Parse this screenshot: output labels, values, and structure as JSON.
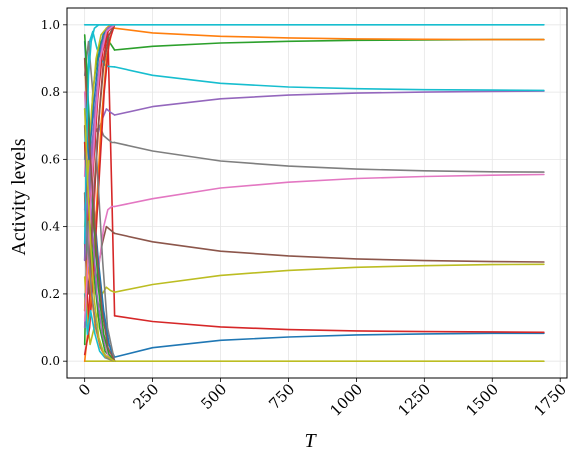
{
  "chart_data": {
    "type": "line",
    "title": "",
    "xlabel": "T",
    "ylabel": "Activity levels",
    "xlim": [
      -65,
      1775
    ],
    "ylim": [
      -0.05,
      1.05
    ],
    "xticks": [
      0,
      250,
      500,
      750,
      1000,
      1250,
      1500,
      1750
    ],
    "xtick_labels": [
      "0",
      "250",
      "500",
      "750",
      "1000",
      "1250",
      "1500",
      "1750"
    ],
    "yticks": [
      0.0,
      0.2,
      0.4,
      0.6,
      0.8,
      1.0
    ],
    "ytick_labels": [
      "0.0",
      "0.2",
      "0.4",
      "0.6",
      "0.8",
      "1.0"
    ],
    "grid": true,
    "legend": "none",
    "series": [
      {
        "color": "#1f77b4",
        "x": [
          110,
          250,
          500,
          750,
          1000,
          1250,
          1500,
          1690
        ],
        "y": [
          0.012,
          0.04,
          0.062,
          0.072,
          0.078,
          0.081,
          0.083,
          0.083
        ]
      },
      {
        "color": "#d62728",
        "x": [
          110,
          250,
          500,
          750,
          1000,
          1250,
          1500,
          1690
        ],
        "y": [
          0.135,
          0.118,
          0.102,
          0.094,
          0.09,
          0.088,
          0.087,
          0.086
        ]
      },
      {
        "color": "#bcbd22",
        "x": [
          110,
          250,
          500,
          750,
          1000,
          1250,
          1500,
          1690
        ],
        "y": [
          0.205,
          0.228,
          0.255,
          0.27,
          0.279,
          0.284,
          0.287,
          0.288
        ]
      },
      {
        "color": "#8c564b",
        "x": [
          110,
          250,
          500,
          750,
          1000,
          1250,
          1500,
          1690
        ],
        "y": [
          0.38,
          0.355,
          0.327,
          0.313,
          0.304,
          0.299,
          0.296,
          0.295
        ]
      },
      {
        "color": "#e377c2",
        "x": [
          110,
          250,
          500,
          750,
          1000,
          1250,
          1500,
          1690
        ],
        "y": [
          0.46,
          0.483,
          0.515,
          0.532,
          0.543,
          0.549,
          0.553,
          0.555
        ]
      },
      {
        "color": "#7f7f7f",
        "x": [
          110,
          250,
          500,
          750,
          1000,
          1250,
          1500,
          1690
        ],
        "y": [
          0.65,
          0.625,
          0.595,
          0.58,
          0.571,
          0.566,
          0.563,
          0.562
        ]
      },
      {
        "color": "#9467bd",
        "x": [
          110,
          250,
          500,
          750,
          1000,
          1250,
          1500,
          1690
        ],
        "y": [
          0.732,
          0.757,
          0.78,
          0.791,
          0.797,
          0.8,
          0.802,
          0.803
        ]
      },
      {
        "color": "#17becf",
        "x": [
          110,
          250,
          500,
          750,
          1000,
          1250,
          1500,
          1690
        ],
        "y": [
          0.875,
          0.85,
          0.826,
          0.815,
          0.81,
          0.807,
          0.806,
          0.805
        ]
      },
      {
        "color": "#2ca02c",
        "x": [
          110,
          250,
          500,
          750,
          1000,
          1250,
          1500,
          1690
        ],
        "y": [
          0.925,
          0.936,
          0.946,
          0.951,
          0.954,
          0.955,
          0.956,
          0.956
        ]
      },
      {
        "color": "#ff7f0e",
        "x": [
          110,
          250,
          500,
          750,
          1000,
          1250,
          1500,
          1690
        ],
        "y": [
          0.99,
          0.976,
          0.966,
          0.961,
          0.958,
          0.957,
          0.956,
          0.956
        ]
      },
      {
        "color": "#17becf",
        "x": [
          0,
          1690
        ],
        "y": [
          1.0,
          1.0
        ]
      },
      {
        "color": "#bcbd22",
        "x": [
          0,
          1690
        ],
        "y": [
          0.0,
          0.0
        ]
      },
      {
        "color": "#1f77b4",
        "x": [
          0,
          5,
          12,
          20,
          30,
          45,
          60,
          75,
          90,
          100,
          110
        ],
        "y": [
          0.3,
          0.55,
          0.7,
          0.6,
          0.45,
          0.3,
          0.18,
          0.1,
          0.05,
          0.03,
          0.012
        ]
      },
      {
        "color": "#d62728",
        "x": [
          0,
          6,
          14,
          25,
          40,
          55,
          70,
          85,
          100,
          110
        ],
        "y": [
          0.5,
          0.25,
          0.12,
          0.3,
          0.55,
          0.75,
          0.9,
          0.98,
          0.5,
          0.135
        ]
      },
      {
        "color": "#2ca02c",
        "x": [
          0,
          8,
          18,
          30,
          45,
          60,
          75,
          90,
          110
        ],
        "y": [
          0.05,
          0.35,
          0.6,
          0.8,
          0.9,
          0.95,
          0.97,
          0.95,
          0.925
        ]
      },
      {
        "color": "#ff7f0e",
        "x": [
          0,
          10,
          20,
          35,
          50,
          65,
          80,
          95,
          110
        ],
        "y": [
          0.9,
          0.7,
          0.5,
          0.65,
          0.85,
          0.96,
          0.99,
          1.0,
          0.99
        ]
      },
      {
        "color": "#9467bd",
        "x": [
          0,
          10,
          22,
          35,
          50,
          65,
          80,
          95,
          110
        ],
        "y": [
          0.1,
          0.3,
          0.55,
          0.7,
          0.68,
          0.72,
          0.75,
          0.74,
          0.732
        ]
      },
      {
        "color": "#8c564b",
        "x": [
          0,
          8,
          20,
          35,
          50,
          65,
          80,
          95,
          110
        ],
        "y": [
          0.7,
          0.5,
          0.3,
          0.2,
          0.28,
          0.35,
          0.4,
          0.39,
          0.38
        ]
      },
      {
        "color": "#e377c2",
        "x": [
          0,
          12,
          25,
          40,
          55,
          70,
          85,
          100,
          110
        ],
        "y": [
          0.8,
          0.6,
          0.35,
          0.2,
          0.3,
          0.4,
          0.45,
          0.46,
          0.46
        ]
      },
      {
        "color": "#7f7f7f",
        "x": [
          0,
          10,
          25,
          40,
          55,
          70,
          85,
          100,
          110
        ],
        "y": [
          0.15,
          0.35,
          0.55,
          0.68,
          0.7,
          0.67,
          0.66,
          0.65,
          0.65
        ]
      },
      {
        "color": "#bcbd22",
        "x": [
          0,
          10,
          20,
          35,
          50,
          65,
          80,
          95,
          110
        ],
        "y": [
          0.25,
          0.12,
          0.05,
          0.1,
          0.15,
          0.2,
          0.22,
          0.21,
          0.205
        ]
      },
      {
        "color": "#17becf",
        "x": [
          0,
          8,
          18,
          30,
          45,
          60,
          75,
          90,
          110
        ],
        "y": [
          0.6,
          0.8,
          0.95,
          0.98,
          0.93,
          0.9,
          0.88,
          0.876,
          0.875
        ]
      },
      {
        "color": "#1f77b4",
        "x": [
          0,
          15,
          30,
          50,
          70,
          90,
          110
        ],
        "y": [
          0.95,
          0.75,
          0.5,
          0.3,
          0.15,
          0.05,
          0.0
        ]
      },
      {
        "color": "#ff7f0e",
        "x": [
          0,
          20,
          40,
          60,
          80,
          100,
          110
        ],
        "y": [
          0.0,
          0.15,
          0.4,
          0.7,
          0.9,
          0.98,
          1.0
        ]
      },
      {
        "color": "#2ca02c",
        "x": [
          0,
          15,
          35,
          55,
          75,
          95,
          110
        ],
        "y": [
          0.65,
          0.45,
          0.25,
          0.1,
          0.03,
          0.01,
          0.0
        ]
      },
      {
        "color": "#d62728",
        "x": [
          0,
          18,
          36,
          54,
          72,
          90,
          110
        ],
        "y": [
          0.02,
          0.1,
          0.3,
          0.55,
          0.8,
          0.95,
          1.0
        ]
      },
      {
        "color": "#9467bd",
        "x": [
          0,
          12,
          28,
          45,
          65,
          85,
          110
        ],
        "y": [
          0.45,
          0.6,
          0.4,
          0.2,
          0.08,
          0.02,
          0.0
        ]
      },
      {
        "color": "#8c564b",
        "x": [
          0,
          15,
          30,
          50,
          70,
          90,
          110
        ],
        "y": [
          0.35,
          0.2,
          0.45,
          0.7,
          0.88,
          0.97,
          1.0
        ]
      },
      {
        "color": "#e377c2",
        "x": [
          0,
          10,
          25,
          45,
          65,
          85,
          110
        ],
        "y": [
          0.55,
          0.75,
          0.6,
          0.3,
          0.1,
          0.02,
          0.0
        ]
      },
      {
        "color": "#7f7f7f",
        "x": [
          0,
          14,
          30,
          48,
          66,
          84,
          110
        ],
        "y": [
          0.85,
          0.95,
          0.8,
          0.55,
          0.3,
          0.1,
          0.0
        ]
      },
      {
        "color": "#bcbd22",
        "x": [
          0,
          12,
          26,
          42,
          60,
          80,
          110
        ],
        "y": [
          0.4,
          0.55,
          0.75,
          0.9,
          0.97,
          0.99,
          1.0
        ]
      },
      {
        "color": "#17becf",
        "x": [
          0,
          10,
          22,
          38,
          55,
          75,
          110
        ],
        "y": [
          0.2,
          0.08,
          0.15,
          0.08,
          0.03,
          0.01,
          0.0
        ]
      },
      {
        "color": "#1f77b4",
        "x": [
          0,
          16,
          32,
          50,
          68,
          86,
          110
        ],
        "y": [
          0.75,
          0.6,
          0.75,
          0.9,
          0.97,
          0.99,
          1.0
        ]
      },
      {
        "color": "#ff7f0e",
        "x": [
          0,
          10,
          24,
          40,
          58,
          78,
          110
        ],
        "y": [
          0.15,
          0.3,
          0.2,
          0.1,
          0.04,
          0.01,
          0.0
        ]
      },
      {
        "color": "#2ca02c",
        "x": [
          0,
          9,
          20,
          34,
          50,
          70,
          90,
          110
        ],
        "y": [
          0.97,
          0.85,
          0.62,
          0.42,
          0.22,
          0.08,
          0.02,
          0.0
        ]
      },
      {
        "color": "#d62728",
        "x": [
          0,
          14,
          30,
          48,
          66,
          86,
          110
        ],
        "y": [
          0.65,
          0.42,
          0.55,
          0.78,
          0.92,
          0.98,
          1.0
        ]
      },
      {
        "color": "#9467bd",
        "x": [
          0,
          12,
          28,
          46,
          64,
          84,
          110
        ],
        "y": [
          0.3,
          0.5,
          0.65,
          0.82,
          0.94,
          0.99,
          1.0
        ]
      },
      {
        "color": "#e377c2",
        "x": [
          0,
          11,
          24,
          40,
          58,
          80,
          110
        ],
        "y": [
          0.12,
          0.28,
          0.5,
          0.72,
          0.9,
          0.98,
          1.0
        ]
      },
      {
        "color": "#7f7f7f",
        "x": [
          0,
          12,
          26,
          42,
          60,
          82,
          110
        ],
        "y": [
          0.5,
          0.35,
          0.2,
          0.1,
          0.04,
          0.01,
          0.0
        ]
      },
      {
        "color": "#8c564b",
        "x": [
          0,
          13,
          28,
          45,
          64,
          86,
          110
        ],
        "y": [
          0.9,
          0.7,
          0.52,
          0.32,
          0.15,
          0.04,
          0.0
        ]
      },
      {
        "color": "#17becf",
        "x": [
          0,
          6,
          14,
          24,
          36,
          52,
          72,
          110
        ],
        "y": [
          0.35,
          0.6,
          0.85,
          0.95,
          0.99,
          1.0,
          1.0,
          1.0
        ]
      },
      {
        "color": "#bcbd22",
        "x": [
          0,
          10,
          22,
          36,
          52,
          72,
          110
        ],
        "y": [
          0.75,
          0.55,
          0.35,
          0.18,
          0.07,
          0.02,
          0.0
        ]
      }
    ]
  }
}
